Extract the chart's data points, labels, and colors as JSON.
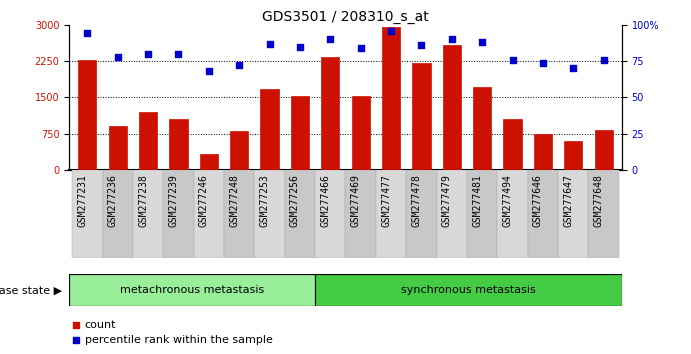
{
  "title": "GDS3501 / 208310_s_at",
  "samples": [
    "GSM277231",
    "GSM277236",
    "GSM277238",
    "GSM277239",
    "GSM277246",
    "GSM277248",
    "GSM277253",
    "GSM277256",
    "GSM277466",
    "GSM277469",
    "GSM277477",
    "GSM277478",
    "GSM277479",
    "GSM277481",
    "GSM277494",
    "GSM277646",
    "GSM277647",
    "GSM277648"
  ],
  "counts": [
    2280,
    900,
    1200,
    1050,
    320,
    800,
    1680,
    1530,
    2330,
    1530,
    2950,
    2220,
    2580,
    1720,
    1050,
    750,
    590,
    820
  ],
  "percentiles": [
    94,
    78,
    80,
    80,
    68,
    72,
    87,
    85,
    90,
    84,
    96,
    86,
    90,
    88,
    76,
    74,
    70,
    76
  ],
  "group1_label": "metachronous metastasis",
  "group1_count": 8,
  "group2_label": "synchronous metastasis",
  "group2_count": 10,
  "bar_color": "#cc1100",
  "dot_color": "#0000cc",
  "left_ylim": [
    0,
    3000
  ],
  "left_yticks": [
    0,
    750,
    1500,
    2250,
    3000
  ],
  "right_ylim": [
    0,
    100
  ],
  "right_yticks": [
    0,
    25,
    50,
    75,
    100
  ],
  "group1_color": "#99ee99",
  "group2_color": "#44cc44",
  "disease_state_label": "disease state",
  "legend_count_label": "count",
  "legend_percentile_label": "percentile rank within the sample",
  "title_fontsize": 10,
  "label_fontsize": 8,
  "tick_fontsize": 7,
  "annotation_fontsize": 8,
  "xtick_fontsize": 7
}
